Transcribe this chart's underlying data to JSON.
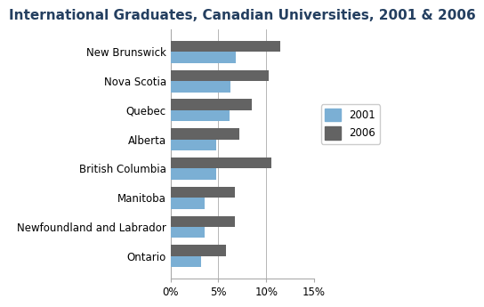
{
  "title": "International Graduates, Canadian Universities, 2001 & 2006",
  "categories": [
    "New Brunswick",
    "Nova Scotia",
    "Quebec",
    "Alberta",
    "British Columbia",
    "Manitoba",
    "Newfoundland and Labrador",
    "Ontario"
  ],
  "values_2001": [
    6.8,
    6.3,
    6.2,
    4.8,
    4.8,
    3.6,
    3.6,
    3.2
  ],
  "values_2006": [
    11.5,
    10.3,
    8.5,
    7.2,
    10.5,
    6.7,
    6.7,
    5.8
  ],
  "color_2001": "#7bafd4",
  "color_2006": "#636363",
  "xlim": [
    0,
    15
  ],
  "xticks": [
    0,
    5,
    10,
    15
  ],
  "xticklabels": [
    "0%",
    "5%",
    "10%",
    "15%"
  ],
  "legend_labels": [
    "2001",
    "2006"
  ],
  "title_fontsize": 11,
  "tick_fontsize": 8.5,
  "title_color": "#243f60",
  "background_color": "#ffffff"
}
